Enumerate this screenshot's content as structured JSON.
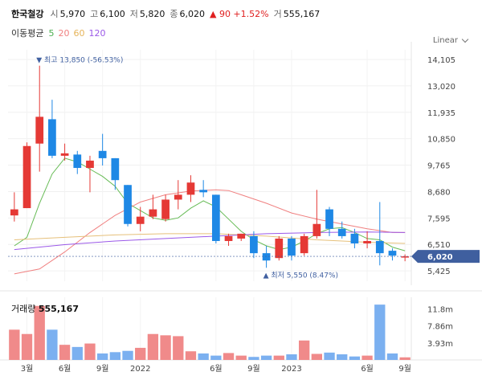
{
  "header": {
    "name": "한국철강",
    "open_label": "시",
    "open": "5,970",
    "high_label": "고",
    "high": "6,100",
    "low_label": "저",
    "low": "5,820",
    "close_label": "종",
    "close": "6,020",
    "change": "▲ 90 +1.52%",
    "volume_label": "거",
    "volume": "555,167"
  },
  "ma": {
    "title": "이동평균",
    "items": [
      {
        "label": "5",
        "color": "#4caf50"
      },
      {
        "label": "20",
        "color": "#f08080"
      },
      {
        "label": "60",
        "color": "#e6b45a"
      },
      {
        "label": "120",
        "color": "#9b59e8"
      }
    ]
  },
  "scale_mode": "Linear",
  "colors": {
    "up": "#e53935",
    "down": "#1e88e5",
    "vol_up": "#f08a8a",
    "vol_down": "#7bb0f0",
    "price_tag": "#3f5f9f"
  },
  "chart_data": {
    "type": "candlestick",
    "y_ticks": [
      "14,105",
      "13,020",
      "11,935",
      "10,850",
      "9,765",
      "8,680",
      "7,595",
      "6,510",
      "5,425"
    ],
    "ylim": [
      5000,
      14500
    ],
    "x_ticks": [
      {
        "index": 1,
        "label": "3월"
      },
      {
        "index": 4,
        "label": "6월"
      },
      {
        "index": 7,
        "label": "9월"
      },
      {
        "index": 10,
        "label": "2022"
      },
      {
        "index": 16,
        "label": "6월"
      },
      {
        "index": 19,
        "label": "9월"
      },
      {
        "index": 22,
        "label": "2023"
      },
      {
        "index": 28,
        "label": "6월"
      },
      {
        "index": 31,
        "label": "9월"
      }
    ],
    "candles": [
      {
        "o": 7700,
        "h": 8650,
        "l": 7450,
        "c": 7950
      },
      {
        "o": 8000,
        "h": 10700,
        "l": 8000,
        "c": 10550
      },
      {
        "o": 10650,
        "h": 13850,
        "l": 9500,
        "c": 11750
      },
      {
        "o": 11650,
        "h": 12450,
        "l": 10050,
        "c": 10150
      },
      {
        "o": 10150,
        "h": 10650,
        "l": 9950,
        "c": 10250
      },
      {
        "o": 10200,
        "h": 10350,
        "l": 9400,
        "c": 9650
      },
      {
        "o": 9650,
        "h": 10150,
        "l": 8650,
        "c": 9950
      },
      {
        "o": 10350,
        "h": 11050,
        "l": 9750,
        "c": 10050
      },
      {
        "o": 10050,
        "h": 10050,
        "l": 8750,
        "c": 9150
      },
      {
        "o": 8950,
        "h": 8950,
        "l": 7250,
        "c": 7350
      },
      {
        "o": 7350,
        "h": 8050,
        "l": 7050,
        "c": 7650
      },
      {
        "o": 7650,
        "h": 8550,
        "l": 7550,
        "c": 7950
      },
      {
        "o": 7550,
        "h": 8550,
        "l": 7450,
        "c": 8350
      },
      {
        "o": 8350,
        "h": 9150,
        "l": 7950,
        "c": 8550
      },
      {
        "o": 8550,
        "h": 9350,
        "l": 8250,
        "c": 9050
      },
      {
        "o": 8750,
        "h": 9150,
        "l": 8450,
        "c": 8650
      },
      {
        "o": 8550,
        "h": 8550,
        "l": 6550,
        "c": 6650
      },
      {
        "o": 6650,
        "h": 6950,
        "l": 6450,
        "c": 6850
      },
      {
        "o": 6750,
        "h": 6950,
        "l": 6650,
        "c": 6950
      },
      {
        "o": 6850,
        "h": 7050,
        "l": 5950,
        "c": 6150
      },
      {
        "o": 6150,
        "h": 6450,
        "l": 5550,
        "c": 5850
      },
      {
        "o": 5950,
        "h": 6850,
        "l": 5850,
        "c": 6750
      },
      {
        "o": 6750,
        "h": 6850,
        "l": 5850,
        "c": 6050
      },
      {
        "o": 6150,
        "h": 6950,
        "l": 6050,
        "c": 6850
      },
      {
        "o": 6850,
        "h": 8750,
        "l": 6750,
        "c": 7350
      },
      {
        "o": 7950,
        "h": 8050,
        "l": 6850,
        "c": 7150
      },
      {
        "o": 7150,
        "h": 7450,
        "l": 6750,
        "c": 6850
      },
      {
        "o": 6950,
        "h": 7150,
        "l": 6350,
        "c": 6550
      },
      {
        "o": 6550,
        "h": 7050,
        "l": 6350,
        "c": 6650
      },
      {
        "o": 6650,
        "h": 8250,
        "l": 5650,
        "c": 6150
      },
      {
        "o": 6250,
        "h": 6350,
        "l": 5850,
        "c": 6050
      },
      {
        "o": 5970,
        "h": 6100,
        "l": 5820,
        "c": 6020
      }
    ],
    "volume": {
      "ticks": [
        "11.8m",
        "7.86m",
        "3.93m"
      ],
      "max": 14.5,
      "values": [
        7.0,
        6.0,
        12.5,
        7.0,
        3.5,
        3.0,
        3.8,
        1.5,
        1.8,
        2.1,
        2.8,
        6.0,
        5.7,
        5.5,
        2.0,
        1.5,
        1.0,
        1.6,
        1.0,
        0.7,
        1.0,
        1.0,
        1.3,
        4.5,
        1.4,
        1.7,
        1.3,
        0.8,
        1.0,
        12.8,
        1.5,
        0.6
      ]
    },
    "ma_lines": {
      "ma5": [
        [
          0,
          6450
        ],
        [
          1,
          6800
        ],
        [
          2,
          8200
        ],
        [
          3,
          9400
        ],
        [
          4,
          10050
        ],
        [
          5,
          9900
        ],
        [
          6,
          9600
        ],
        [
          7,
          9300
        ],
        [
          8,
          8900
        ],
        [
          9,
          8200
        ],
        [
          10,
          7900
        ],
        [
          11,
          7600
        ],
        [
          12,
          7500
        ],
        [
          13,
          7600
        ],
        [
          14,
          8000
        ],
        [
          15,
          8300
        ],
        [
          16,
          8050
        ],
        [
          17,
          7550
        ],
        [
          18,
          7050
        ],
        [
          19,
          6700
        ],
        [
          20,
          6450
        ],
        [
          21,
          6300
        ],
        [
          22,
          6400
        ],
        [
          23,
          6650
        ],
        [
          24,
          6950
        ],
        [
          25,
          7150
        ],
        [
          26,
          7200
        ],
        [
          27,
          7000
        ],
        [
          28,
          6750
        ],
        [
          29,
          6700
        ],
        [
          30,
          6400
        ],
        [
          31,
          6250
        ]
      ],
      "ma20": [
        [
          0,
          5300
        ],
        [
          2,
          5500
        ],
        [
          4,
          6200
        ],
        [
          6,
          7000
        ],
        [
          8,
          7700
        ],
        [
          10,
          8250
        ],
        [
          12,
          8550
        ],
        [
          14,
          8700
        ],
        [
          16,
          8750
        ],
        [
          17,
          8720
        ],
        [
          18,
          8550
        ],
        [
          20,
          8200
        ],
        [
          22,
          7800
        ],
        [
          24,
          7550
        ],
        [
          26,
          7350
        ],
        [
          28,
          7150
        ],
        [
          30,
          7000
        ],
        [
          31,
          7000
        ]
      ],
      "ma60": [
        [
          0,
          6700
        ],
        [
          4,
          6800
        ],
        [
          8,
          6900
        ],
        [
          12,
          6950
        ],
        [
          16,
          6950
        ],
        [
          20,
          6850
        ],
        [
          24,
          6700
        ],
        [
          28,
          6600
        ],
        [
          31,
          6550
        ]
      ],
      "ma120": [
        [
          0,
          6300
        ],
        [
          4,
          6500
        ],
        [
          8,
          6650
        ],
        [
          12,
          6750
        ],
        [
          16,
          6850
        ],
        [
          20,
          6950
        ],
        [
          24,
          7000
        ],
        [
          28,
          7020
        ],
        [
          31,
          7000
        ]
      ]
    },
    "annotations": {
      "high": "최고 13,850 (-56.53%)",
      "low": "최저 5,550 (8.47%)",
      "current": "6,020"
    }
  }
}
